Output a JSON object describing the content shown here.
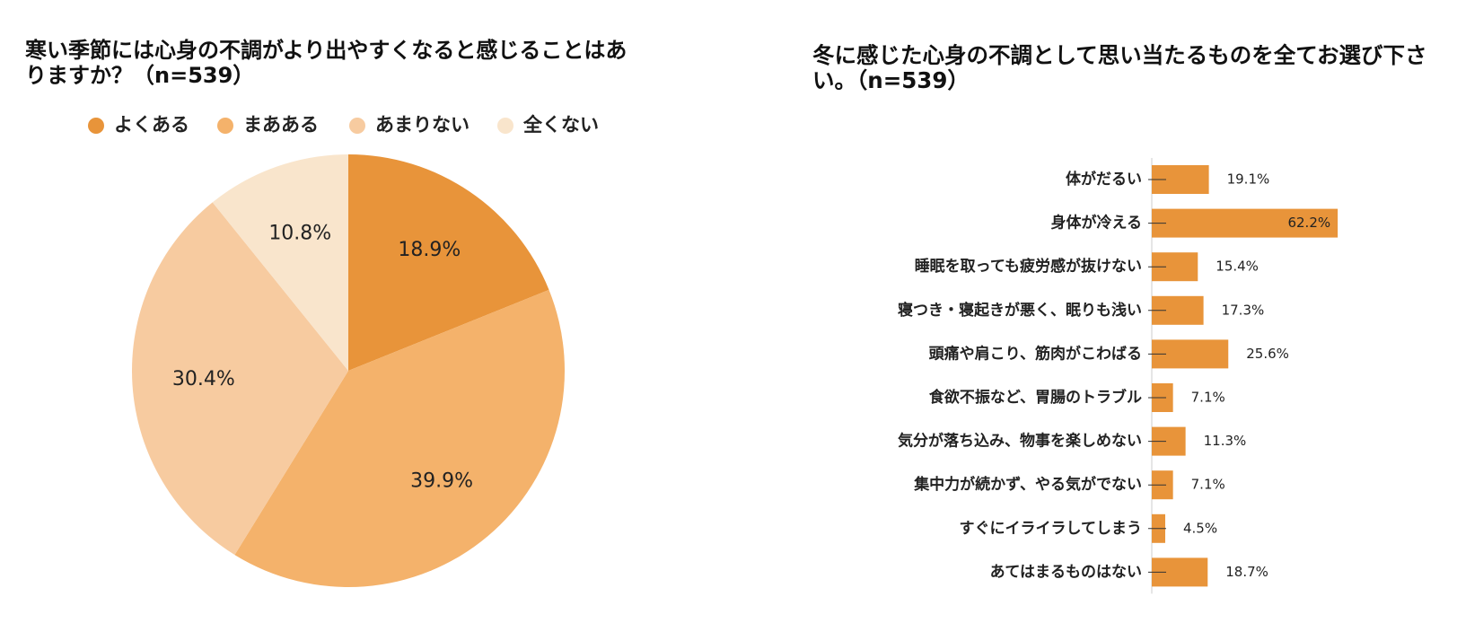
{
  "chart_data": [
    {
      "type": "pie",
      "title": "寒い季節には心身の不調がより出やすくなると感じることはありますか？（n=539）",
      "categories": [
        "よくある",
        "まあある",
        "あまりない",
        "全くない"
      ],
      "values": [
        18.9,
        39.9,
        30.4,
        10.8
      ],
      "value_labels": [
        "18.9%",
        "39.9%",
        "30.4%",
        "10.8%"
      ],
      "colors": [
        "#e8943a",
        "#f4b26b",
        "#f7cba0",
        "#f9e5cc"
      ]
    },
    {
      "type": "bar",
      "title": "冬に感じた心身の不調として思い当たるものを全てお選び下さい。（n=539）",
      "categories": [
        "体がだるい",
        "身体が冷える",
        "睡眠を取っても疲労感が抜けない",
        "寝つき・寝起きが悪く、眠りも浅い",
        "頭痛や肩こり、筋肉がこわばる",
        "食欲不振など、胃腸のトラブル",
        "気分が落ち込み、物事を楽しめない",
        "集中力が続かず、やる気がでない",
        "すぐにイライラしてしまう",
        "あてはまるものはない"
      ],
      "values": [
        19.1,
        62.2,
        15.4,
        17.3,
        25.6,
        7.1,
        11.3,
        7.1,
        4.5,
        18.7
      ],
      "value_labels": [
        "19.1%",
        "62.2%",
        "15.4%",
        "17.3%",
        "25.6%",
        "7.1%",
        "11.3%",
        "7.1%",
        "4.5%",
        "18.7%"
      ],
      "color": "#e8943a"
    }
  ]
}
